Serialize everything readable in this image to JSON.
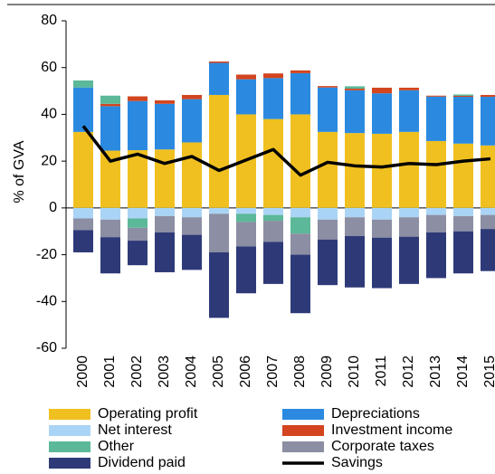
{
  "chart_data": {
    "type": "bar",
    "y_label": "% of GVA",
    "categories": [
      "2000",
      "2001",
      "2002",
      "2003",
      "2004",
      "2005",
      "2006",
      "2007",
      "2008",
      "2009",
      "2010",
      "2011",
      "2012",
      "2013",
      "2014",
      "2015"
    ],
    "ylim": [
      -60,
      80
    ],
    "yticks": [
      -60,
      -40,
      -20,
      0,
      20,
      40,
      60,
      80
    ],
    "series": [
      {
        "name": "Operating profit",
        "color": "#f0c020",
        "values": [
          32.5,
          24.5,
          24.7,
          25,
          28,
          48.3,
          40,
          38,
          40,
          32.5,
          32,
          31.7,
          32.5,
          28.6,
          27.5,
          26.7
        ]
      },
      {
        "name": "Depreciations",
        "color": "#2b8ae0",
        "values": [
          19,
          19,
          21,
          19.5,
          18.5,
          13.7,
          15,
          17.5,
          17.6,
          19,
          18.3,
          17.3,
          17.8,
          19,
          20,
          20.8
        ]
      },
      {
        "name": "Net interest",
        "color": "#aad4f5",
        "values": [
          -4.5,
          -5,
          -4.5,
          -3.5,
          -4,
          -2.5,
          -2.5,
          -3,
          -4,
          -5,
          -4,
          -5,
          -4,
          -3,
          -3.5,
          -3
        ]
      },
      {
        "name": "Investment income",
        "color": "#d2451f",
        "values": [
          0,
          1,
          2,
          1.5,
          1.8,
          0.6,
          2,
          2,
          1.2,
          0.6,
          0.7,
          2.4,
          1.1,
          0.4,
          0.4,
          0.8
        ]
      },
      {
        "name": "Other",
        "color": "#5bb899",
        "values": [
          3,
          3.5,
          -4,
          0,
          0,
          0,
          -3.5,
          -2.5,
          -7,
          0,
          1,
          0,
          0,
          0,
          0.6,
          0
        ]
      },
      {
        "name": "Corporate taxes",
        "color": "#8c8ea3",
        "values": [
          -5,
          -7.5,
          -5.5,
          -7,
          -7.5,
          -16.5,
          -10.5,
          -9,
          -9,
          -8.5,
          -8,
          -7.7,
          -8.3,
          -7.5,
          -6.5,
          -6
        ]
      },
      {
        "name": "Dividend paid",
        "color": "#2e3a78",
        "values": [
          -9.5,
          -15.5,
          -10.5,
          -17,
          -15,
          -28,
          -20,
          -18,
          -25,
          -19.5,
          -22,
          -21.6,
          -20.2,
          -19.5,
          -18,
          -18
        ]
      },
      {
        "name": "Savings",
        "type": "line",
        "color": "#000000",
        "values": [
          35,
          20,
          23,
          19,
          22,
          16,
          20.5,
          25,
          14,
          19.5,
          18,
          17.5,
          19,
          18.5,
          20,
          21
        ]
      }
    ]
  }
}
